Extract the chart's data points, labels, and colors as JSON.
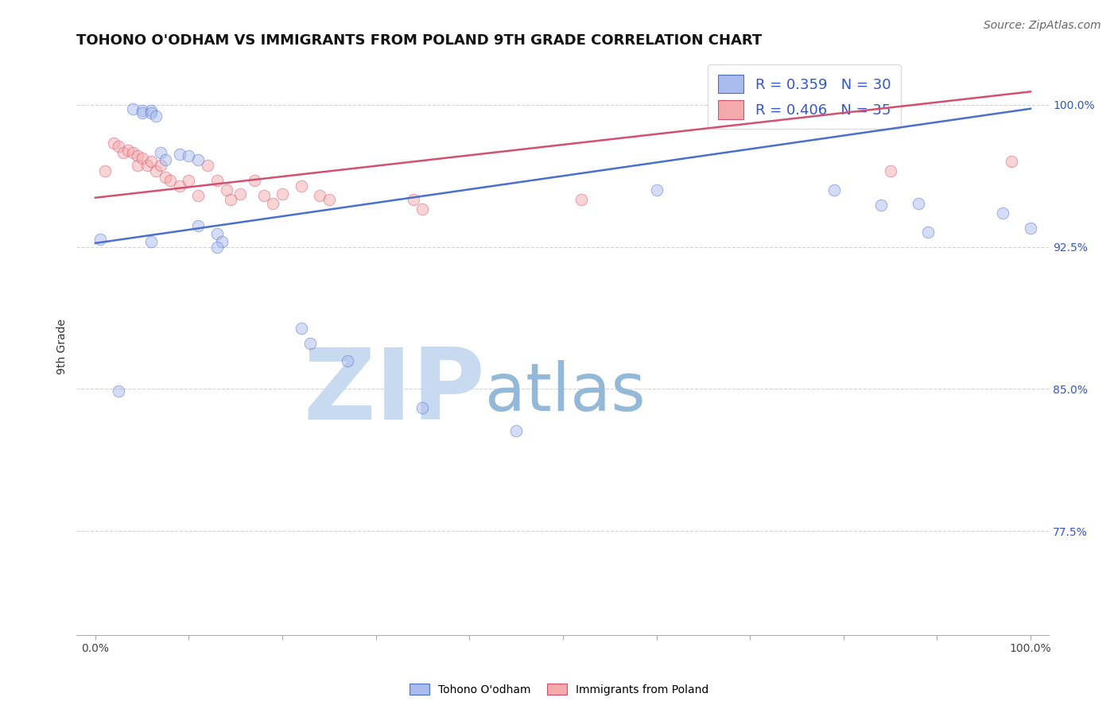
{
  "title": "TOHONO O'ODHAM VS IMMIGRANTS FROM POLAND 9TH GRADE CORRELATION CHART",
  "source": "Source: ZipAtlas.com",
  "ylabel": "9th Grade",
  "y_ticks": [
    0.775,
    0.85,
    0.925,
    1.0
  ],
  "y_tick_labels": [
    "77.5%",
    "85.0%",
    "92.5%",
    "100.0%"
  ],
  "x_ticks": [
    0.0,
    0.1,
    0.2,
    0.3,
    0.4,
    0.5,
    0.6,
    0.7,
    0.8,
    0.9,
    1.0
  ],
  "x_tick_labels": [
    "0.0%",
    "",
    "",
    "",
    "",
    "",
    "",
    "",
    "",
    "",
    "100.0%"
  ],
  "xlim": [
    -0.02,
    1.02
  ],
  "ylim": [
    0.72,
    1.025
  ],
  "blue_scatter_x": [
    0.025,
    0.04,
    0.05,
    0.05,
    0.06,
    0.06,
    0.065,
    0.07,
    0.075,
    0.09,
    0.1,
    0.11,
    0.11,
    0.13,
    0.135,
    0.22,
    0.23,
    0.27,
    0.6,
    0.79,
    0.84,
    0.88,
    0.89,
    0.97,
    1.0,
    0.005,
    0.06,
    0.13,
    0.35,
    0.45
  ],
  "blue_scatter_y": [
    0.849,
    0.998,
    0.997,
    0.996,
    0.997,
    0.996,
    0.994,
    0.975,
    0.971,
    0.974,
    0.973,
    0.971,
    0.936,
    0.932,
    0.928,
    0.882,
    0.874,
    0.865,
    0.955,
    0.955,
    0.947,
    0.948,
    0.933,
    0.943,
    0.935,
    0.929,
    0.928,
    0.925,
    0.84,
    0.828
  ],
  "pink_scatter_x": [
    0.01,
    0.02,
    0.025,
    0.03,
    0.035,
    0.04,
    0.045,
    0.045,
    0.05,
    0.055,
    0.06,
    0.065,
    0.07,
    0.075,
    0.08,
    0.09,
    0.1,
    0.11,
    0.12,
    0.13,
    0.14,
    0.145,
    0.155,
    0.17,
    0.18,
    0.19,
    0.2,
    0.22,
    0.24,
    0.25,
    0.34,
    0.35,
    0.52,
    0.85,
    0.98
  ],
  "pink_scatter_y": [
    0.965,
    0.98,
    0.978,
    0.975,
    0.976,
    0.975,
    0.973,
    0.968,
    0.972,
    0.968,
    0.97,
    0.965,
    0.968,
    0.962,
    0.96,
    0.957,
    0.96,
    0.952,
    0.968,
    0.96,
    0.955,
    0.95,
    0.953,
    0.96,
    0.952,
    0.948,
    0.953,
    0.957,
    0.952,
    0.95,
    0.95,
    0.945,
    0.95,
    0.965,
    0.97
  ],
  "blue_line_x": [
    0.0,
    1.0
  ],
  "blue_line_y": [
    0.927,
    0.998
  ],
  "pink_line_x": [
    0.0,
    1.0
  ],
  "pink_line_y": [
    0.951,
    1.007
  ],
  "scatter_size": 110,
  "scatter_alpha": 0.5,
  "line_color_blue": "#4a6fce",
  "line_color_pink": "#d45070",
  "dot_color_blue": "#aabbee",
  "dot_color_pink": "#f4aaaa",
  "background_color": "#ffffff",
  "grid_color": "#c8c8c8",
  "watermark_zip": "ZIP",
  "watermark_atlas": "atlas",
  "watermark_color_zip": "#c8daf0",
  "watermark_color_atlas": "#94b8d8",
  "title_fontsize": 13,
  "axis_label_fontsize": 10,
  "tick_fontsize": 10,
  "legend_fontsize": 13,
  "source_fontsize": 10
}
